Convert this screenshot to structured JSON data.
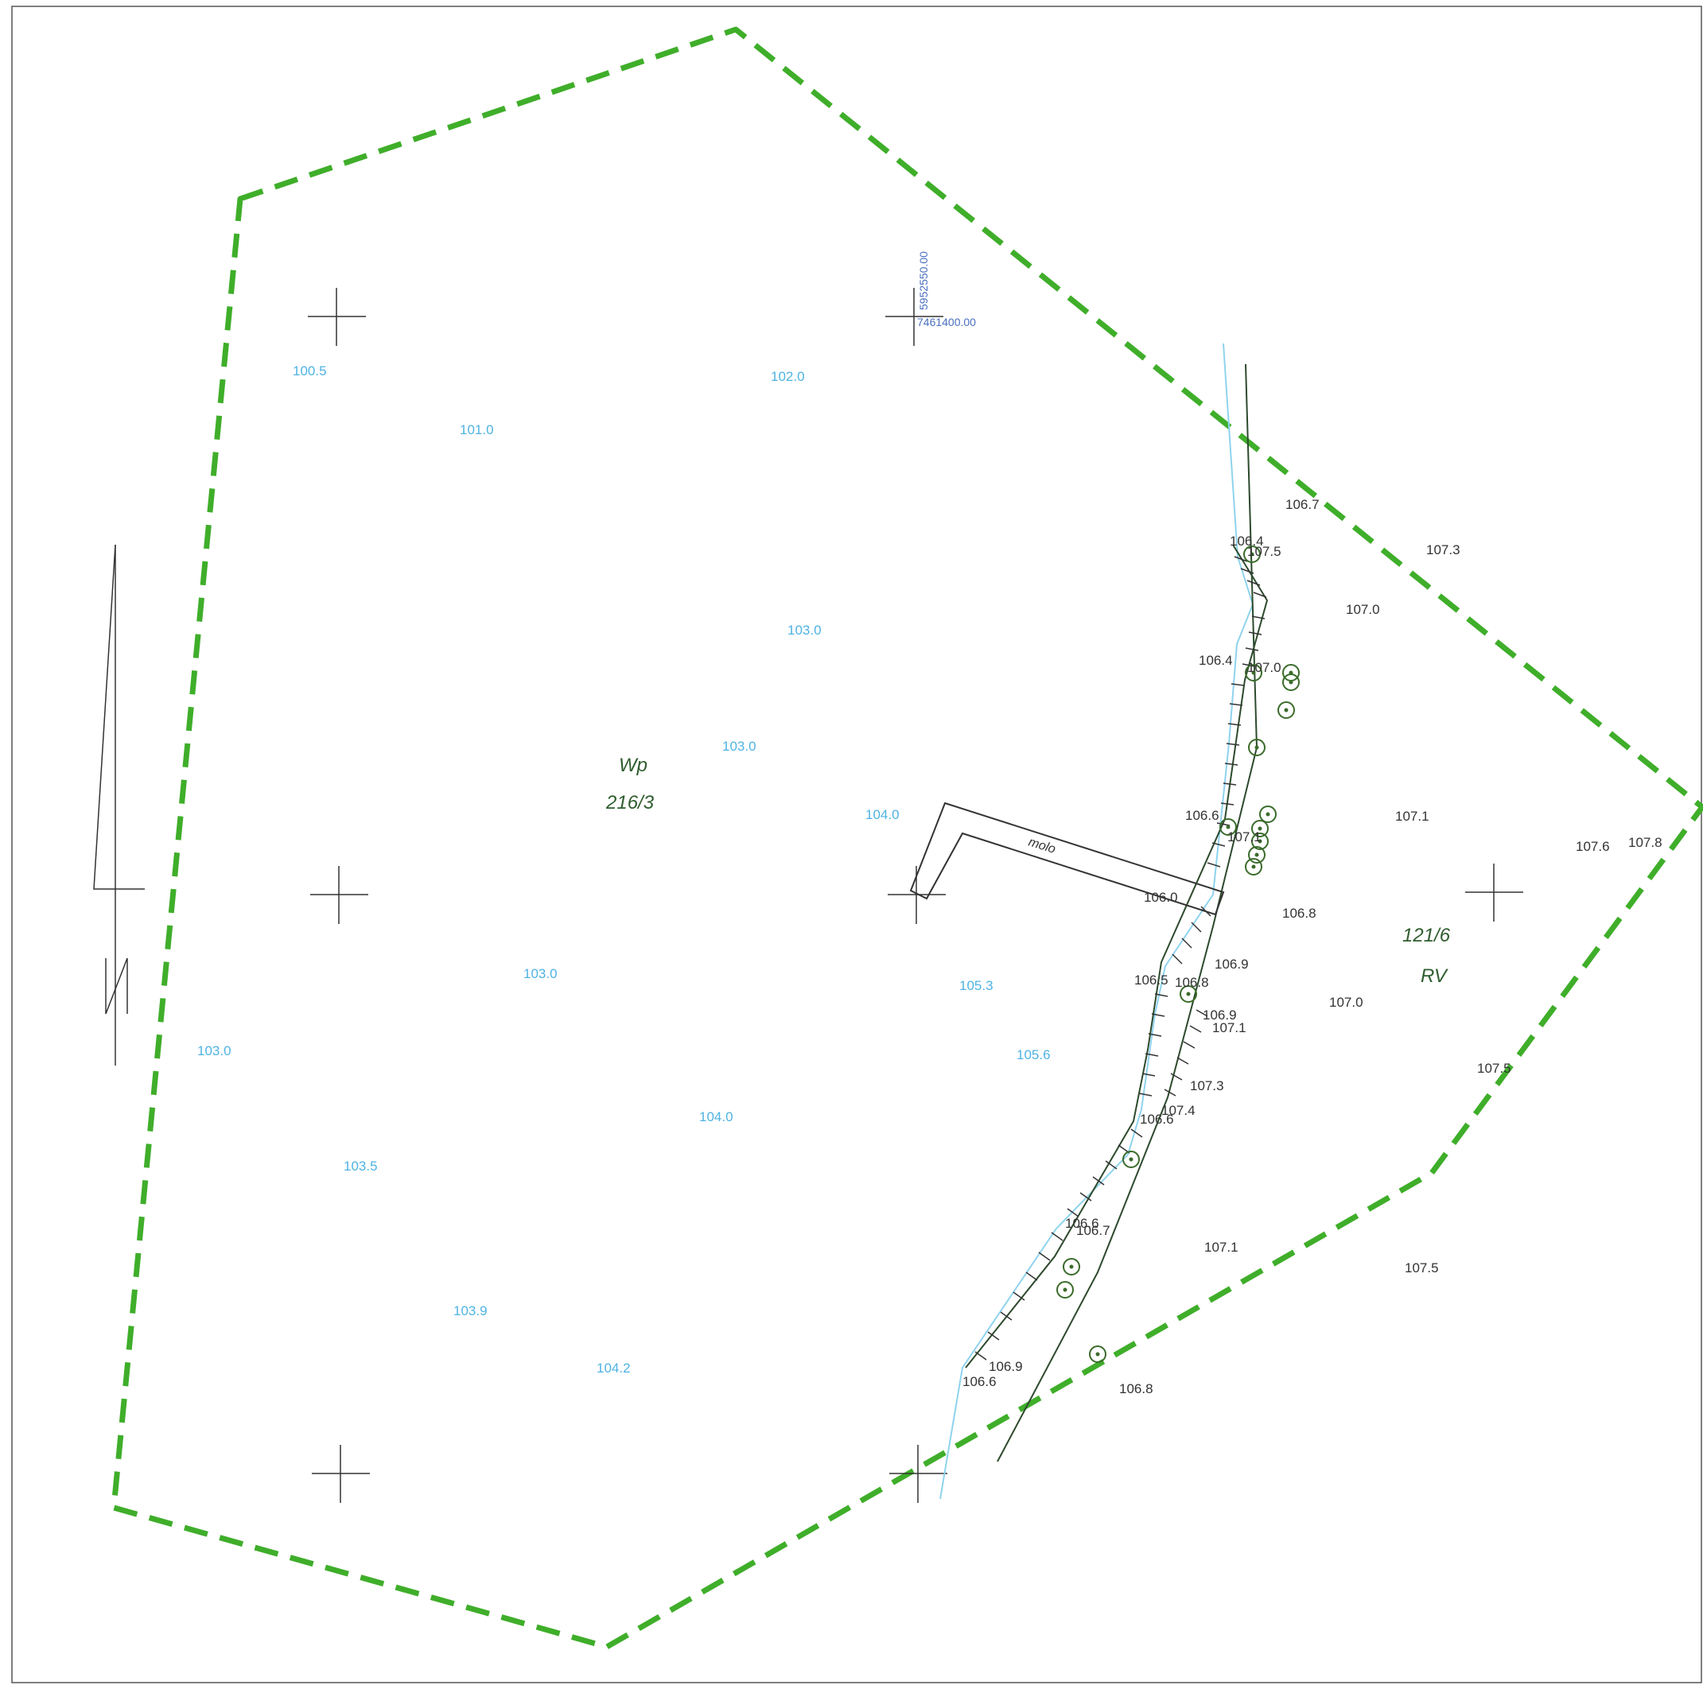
{
  "colors": {
    "boundary": "#3fae2a",
    "water_line": "#8fd3ee",
    "terrain_line": "#2d4a2d",
    "text_blue": "#4fb3e3",
    "text_black": "#333333",
    "text_green": "#2f5d2f",
    "coord": "#4a6fc0"
  },
  "icons": {
    "tree": "tree-symbol-icon",
    "north_arrow": "north-arrow-icon"
  },
  "coordinates": {
    "northing": "5952550.00",
    "easting": "7461400.00"
  },
  "parcels": {
    "west": {
      "use": "Wp",
      "number": "216/3"
    },
    "east": {
      "number": "121/6",
      "use": "RV"
    }
  },
  "structure": {
    "pier_label": "molo"
  },
  "spot_heights_water": [
    "100.5",
    "101.0",
    "102.0",
    "103.0",
    "103.0",
    "104.0",
    "103.0",
    "105.3",
    "105.6",
    "103.0",
    "104.0",
    "103.5",
    "103.9",
    "104.2"
  ],
  "spot_heights_land": [
    "106.7",
    "107.3",
    "106.4",
    "107.5",
    "107.0",
    "106.4",
    "107.0",
    "106.6",
    "107.1",
    "107.1",
    "107.6",
    "107.8",
    "106.0",
    "106.8",
    "106.9",
    "106.5",
    "106.8",
    "107.0",
    "106.9",
    "107.1",
    "107.5",
    "107.3",
    "107.4",
    "106.6",
    "106.6",
    "106.7",
    "107.1",
    "107.5",
    "106.9",
    "106.6",
    "106.8"
  ]
}
